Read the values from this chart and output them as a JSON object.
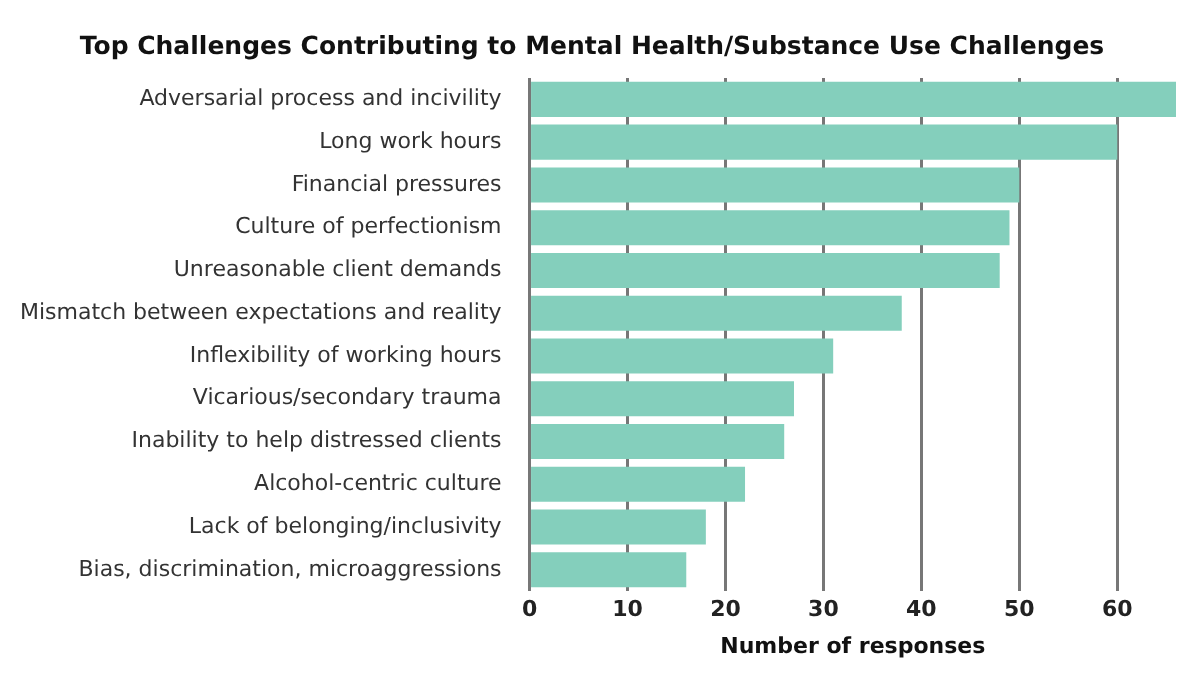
{
  "chart_data": {
    "type": "bar",
    "orientation": "horizontal",
    "title": "Top Challenges Contributing to Mental Health/Substance Use Challenges",
    "xlabel": "Number of responses",
    "categories": [
      "Adversarial process and incivility",
      "Long work hours",
      "Financial pressures",
      "Culture of perfectionism",
      "Unreasonable client demands",
      "Mismatch between expectations and reality",
      "Inflexibility of working hours",
      "Vicarious/secondary trauma",
      "Inability to help distressed clients",
      "Alcohol-centric culture",
      "Lack of belonging/inclusivity",
      "Bias, discrimination, microaggressions"
    ],
    "values": [
      66,
      60,
      50,
      49,
      48,
      38,
      31,
      27,
      26,
      22,
      18,
      16
    ],
    "color": "#84cfbc",
    "xlim": [
      0,
      66
    ],
    "xticks": [
      0,
      10,
      20,
      30,
      40,
      50,
      60
    ],
    "grid": "x",
    "legend": false
  }
}
